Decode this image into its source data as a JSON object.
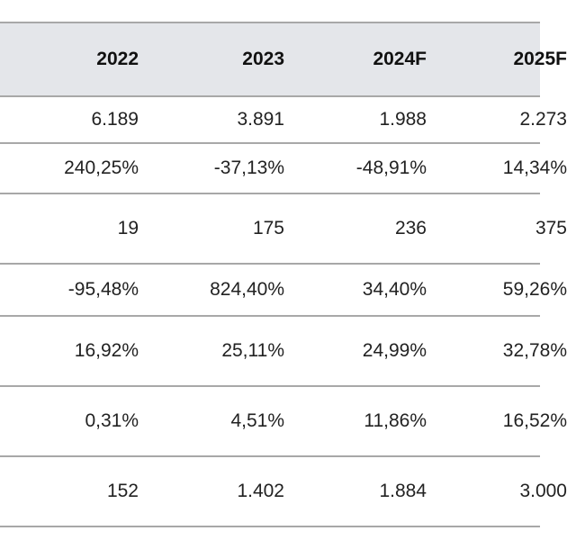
{
  "table": {
    "headers": [
      "2022",
      "2023",
      "2024F",
      "2025F"
    ],
    "rows": [
      [
        "6.189",
        "3.891",
        "1.988",
        "2.273"
      ],
      [
        "240,25%",
        "-37,13%",
        "-48,91%",
        "14,34%"
      ],
      [
        "19",
        "175",
        "236",
        "375"
      ],
      [
        "-95,48%",
        "824,40%",
        "34,40%",
        "59,26%"
      ],
      [
        "16,92%",
        "25,11%",
        "24,99%",
        "32,78%"
      ],
      [
        "0,31%",
        "4,51%",
        "11,86%",
        "16,52%"
      ],
      [
        "152",
        "1.402",
        "1.884",
        "3.000"
      ]
    ]
  },
  "colors": {
    "header_background": "#e4e6ea",
    "rule": "#a8a8a8",
    "text": "#222222"
  }
}
